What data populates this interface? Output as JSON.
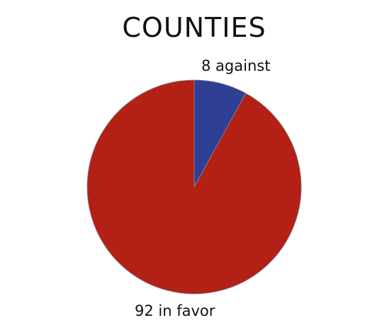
{
  "chart_data": {
    "type": "pie",
    "title": "COUNTIES",
    "slices": [
      {
        "label": "8 against",
        "value": 8,
        "color": "#2f3f94"
      },
      {
        "label": "92 in favor",
        "value": 92,
        "color": "#b32016"
      }
    ],
    "start_angle": "12 o'clock",
    "direction": "clockwise",
    "legend": "none"
  }
}
